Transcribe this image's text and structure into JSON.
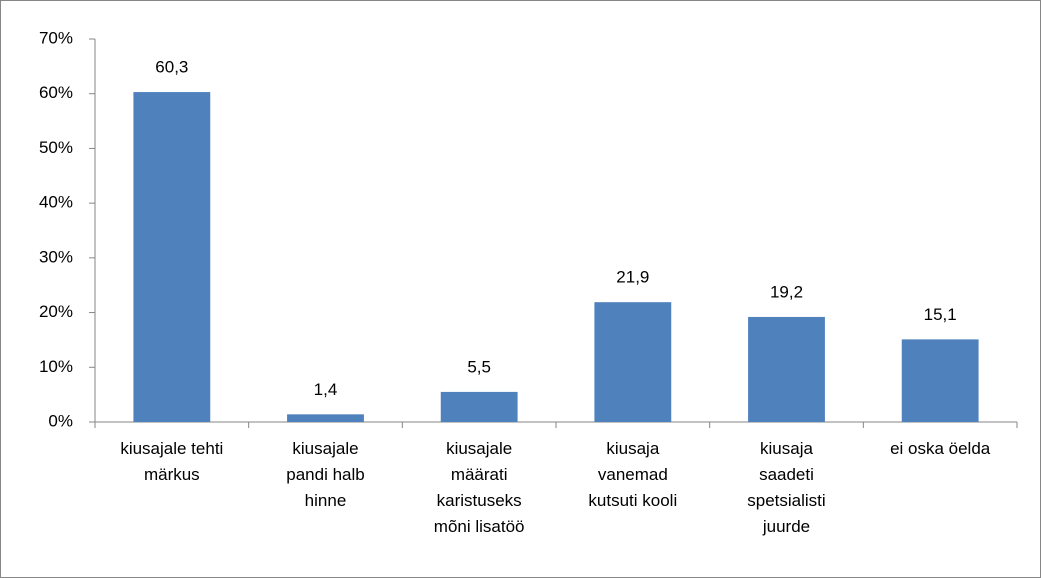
{
  "chart_data": {
    "type": "bar",
    "categories": [
      "kiusajale tehti\nmärkus",
      "kiusajale\npandi halb\nhinne",
      "kiusajale\nmäärati\nkaristuseks\nmõni lisatöö",
      "kiusaja\nvanemad\nkutsuti kooli",
      "kiusaja\nsaadeti\nspetsialisti\njuurde",
      "ei oska öelda"
    ],
    "values": [
      60.3,
      1.4,
      5.5,
      21.9,
      19.2,
      15.1
    ],
    "value_labels": [
      "60,3",
      "1,4",
      "5,5",
      "21,9",
      "19,2",
      "15,1"
    ],
    "color": "#4f81bd",
    "ylim": [
      0,
      70
    ],
    "yticks": [
      {
        "value": 0,
        "label": "0%"
      },
      {
        "value": 10,
        "label": "10%"
      },
      {
        "value": 20,
        "label": "20%"
      },
      {
        "value": 30,
        "label": "30%"
      },
      {
        "value": 40,
        "label": "40%"
      },
      {
        "value": 50,
        "label": "50%"
      },
      {
        "value": 60,
        "label": "60%"
      },
      {
        "value": 70,
        "label": "70%"
      }
    ],
    "grid": false
  }
}
